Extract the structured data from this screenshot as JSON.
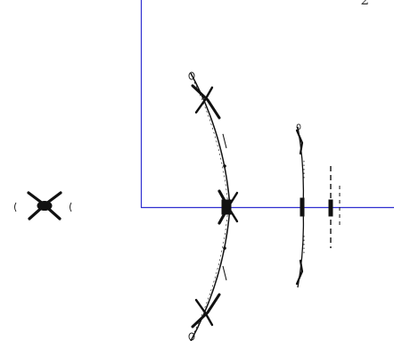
{
  "figure": {
    "corner_label": "2",
    "axis_color": "#2f2fd0",
    "ink_color": "#111111"
  },
  "axes": {
    "vertical": {
      "name": "vertical-axis"
    },
    "horizontal": {
      "name": "horizontal-axis"
    }
  }
}
